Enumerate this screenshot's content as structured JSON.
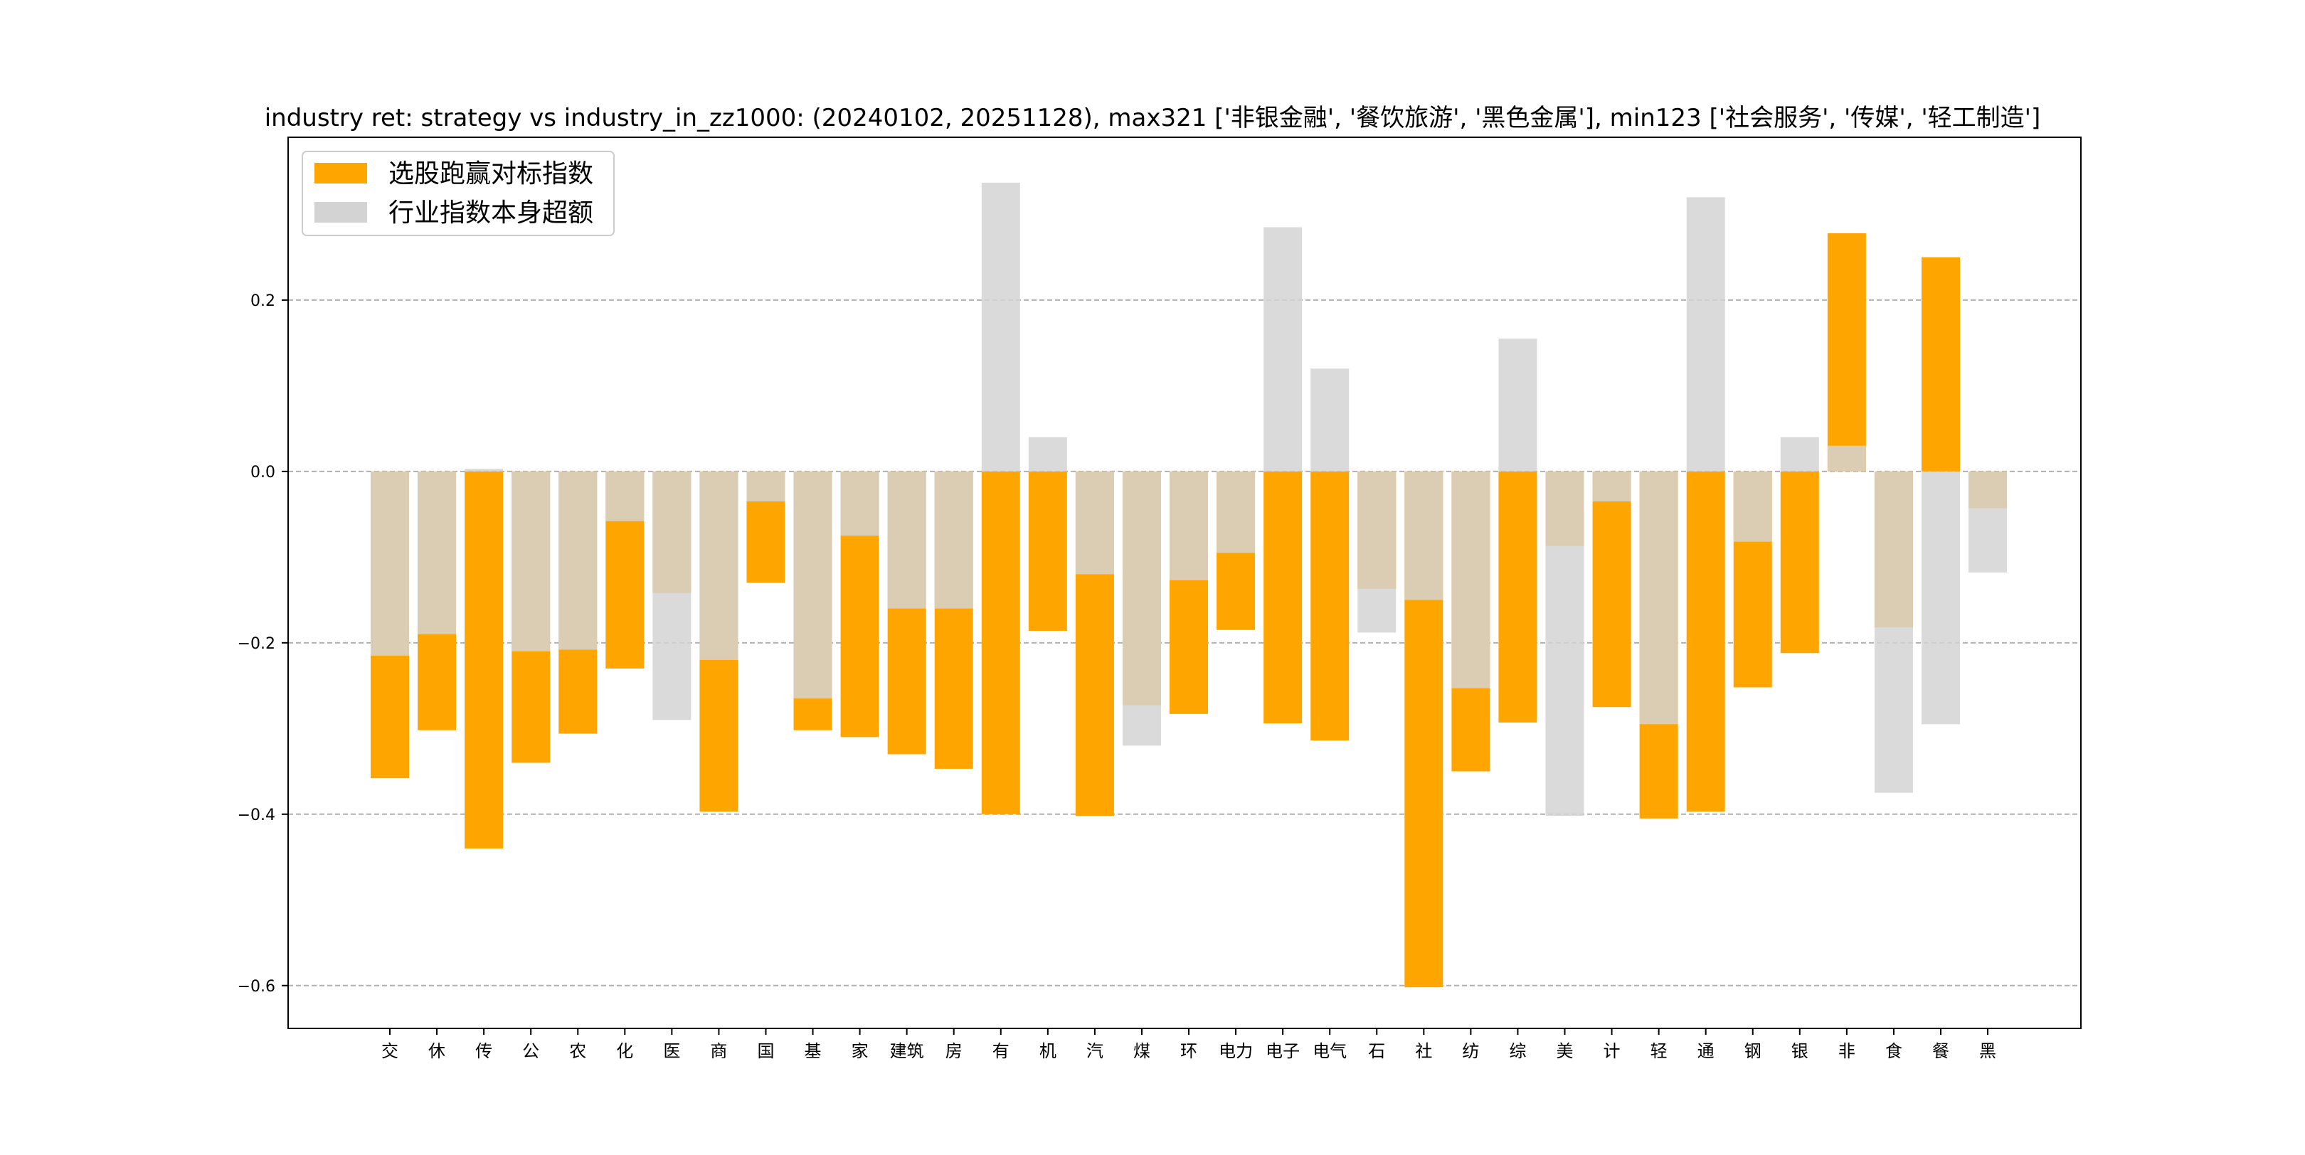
{
  "chart_data": {
    "type": "bar",
    "title": "industry ret: strategy vs industry_in_zz1000: (20240102, 20251128), max321 ['非银金融', '餐饮旅游', '黑色金属'], min123 ['社会服务', '传媒', '轻工制造']",
    "xlabel": "",
    "ylabel": "",
    "ylim": [
      -0.65,
      0.39
    ],
    "yticks": [
      0.2,
      0.0,
      -0.2,
      -0.4,
      -0.6
    ],
    "ytick_labels": [
      "0.2",
      "0.0",
      "−0.2",
      "−0.4",
      "−0.6"
    ],
    "grid": "y-dashed",
    "legend_position": "top-left",
    "categories": [
      "交",
      "休",
      "传",
      "公",
      "农",
      "化",
      "医",
      "商",
      "国",
      "基",
      "家",
      "建筑",
      "房",
      "有",
      "机",
      "汽",
      "煤",
      "环",
      "电力",
      "电子",
      "电气",
      "石",
      "社",
      "纺",
      "综",
      "美",
      "计",
      "轻",
      "通",
      "钢",
      "银",
      "非",
      "食",
      "餐",
      "黑"
    ],
    "series": [
      {
        "name": "选股跑赢对标指数",
        "color": "#FFA500",
        "values": [
          -0.358,
          -0.302,
          -0.44,
          -0.34,
          -0.306,
          -0.23,
          -0.142,
          -0.397,
          -0.13,
          -0.302,
          -0.31,
          -0.33,
          -0.347,
          -0.4,
          -0.186,
          -0.402,
          -0.273,
          -0.283,
          -0.185,
          -0.294,
          -0.314,
          -0.137,
          -0.602,
          -0.35,
          -0.293,
          -0.087,
          -0.275,
          -0.405,
          -0.397,
          -0.252,
          -0.212,
          0.278,
          -0.182,
          0.25,
          -0.043
        ]
      },
      {
        "name": "行业指数本身超额",
        "color": "#D3D3D3",
        "values": [
          -0.215,
          -0.19,
          0.003,
          -0.21,
          -0.208,
          -0.058,
          -0.29,
          -0.22,
          -0.035,
          -0.265,
          -0.075,
          -0.16,
          -0.16,
          0.337,
          0.04,
          -0.12,
          -0.32,
          -0.127,
          -0.095,
          0.285,
          0.12,
          -0.188,
          -0.15,
          -0.253,
          0.155,
          -0.402,
          -0.035,
          -0.295,
          0.32,
          -0.082,
          0.04,
          0.03,
          -0.375,
          -0.295,
          -0.118
        ]
      }
    ]
  }
}
